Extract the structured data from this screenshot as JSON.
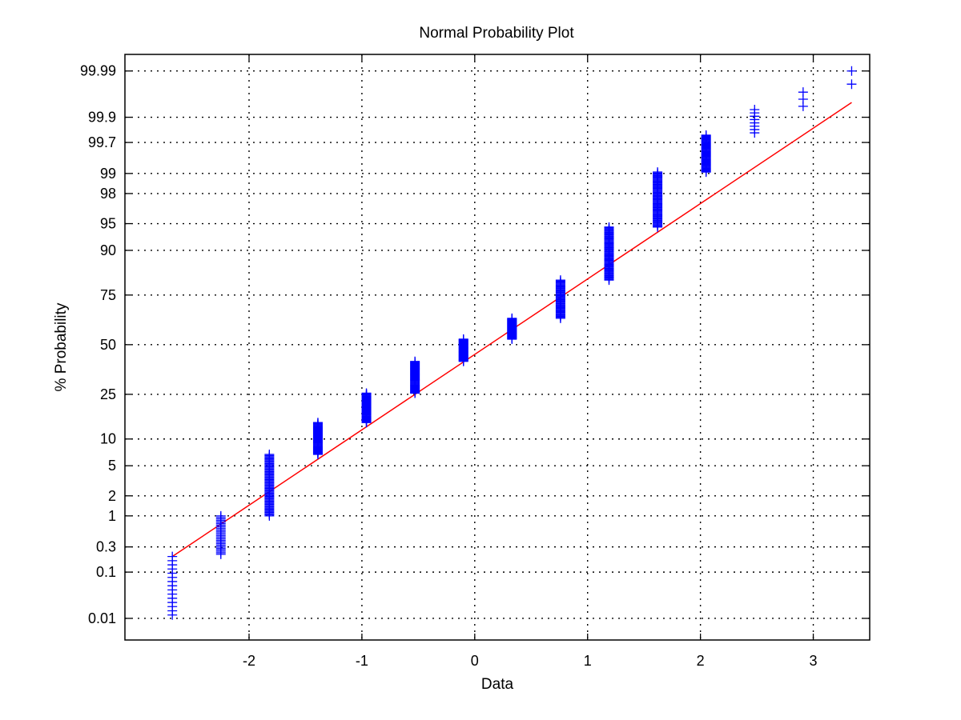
{
  "chart_data": {
    "type": "scatter",
    "title": "Normal Probability Plot",
    "xlabel": "Data",
    "ylabel": "% Probability",
    "xlim": [
      -3.1,
      3.5
    ],
    "ylim_percent": [
      0.003,
      99.996
    ],
    "y_scale": "normal-probability",
    "grid": true,
    "x_ticks": [
      -2,
      -1,
      0,
      1,
      2,
      3
    ],
    "x_tick_labels": [
      "-2",
      "-1",
      "0",
      "1",
      "2",
      "3"
    ],
    "y_ticks": [
      0.01,
      0.1,
      0.3,
      1,
      2,
      5,
      10,
      25,
      50,
      75,
      90,
      95,
      98,
      99,
      99.7,
      99.9,
      99.99
    ],
    "y_tick_labels": [
      "0.01",
      "0.1",
      "0.3",
      "1",
      "2",
      "5",
      "10",
      "25",
      "50",
      "75",
      "90",
      "95",
      "98",
      "99",
      "99.7",
      "99.9",
      "99.99"
    ],
    "marker": "+",
    "marker_color": "#0000ff",
    "fit_line_color": "#ff0000",
    "series": [
      {
        "type": "scatter",
        "points": [
          {
            "x": -2.68,
            "p_min": 0.012,
            "p_max": 0.2,
            "n": 15
          },
          {
            "x": -2.25,
            "p_min": 0.22,
            "p_max": 1.0,
            "n": 26
          },
          {
            "x": -1.82,
            "p_min": 1.0,
            "p_max": 6.8,
            "n": 55
          },
          {
            "x": -1.39,
            "p_min": 6.8,
            "p_max": 14.5,
            "n": 40
          },
          {
            "x": -0.96,
            "p_min": 14.5,
            "p_max": 25.5,
            "n": 40
          },
          {
            "x": -0.53,
            "p_min": 25.5,
            "p_max": 41,
            "n": 40
          },
          {
            "x": -0.1,
            "p_min": 41,
            "p_max": 53,
            "n": 40
          },
          {
            "x": 0.33,
            "p_min": 53,
            "p_max": 64,
            "n": 40
          },
          {
            "x": 0.76,
            "p_min": 64,
            "p_max": 81,
            "n": 40
          },
          {
            "x": 1.19,
            "p_min": 81,
            "p_max": 94.5,
            "n": 55
          },
          {
            "x": 1.62,
            "p_min": 94.5,
            "p_max": 99.05,
            "n": 55
          },
          {
            "x": 2.05,
            "p_min": 99.05,
            "p_max": 99.78,
            "n": 45
          },
          {
            "x": 2.48,
            "p_min": 99.8,
            "p_max": 99.93,
            "n": 8
          },
          {
            "x": 2.91,
            "p_min": 99.94,
            "p_max": 99.97,
            "n": 3
          },
          {
            "x": 3.34,
            "p_min": 99.98,
            "p_max": 99.99,
            "n": 2
          }
        ]
      },
      {
        "type": "line",
        "x": [
          -2.68,
          3.34
        ],
        "y": [
          0.2,
          99.95
        ]
      }
    ]
  }
}
